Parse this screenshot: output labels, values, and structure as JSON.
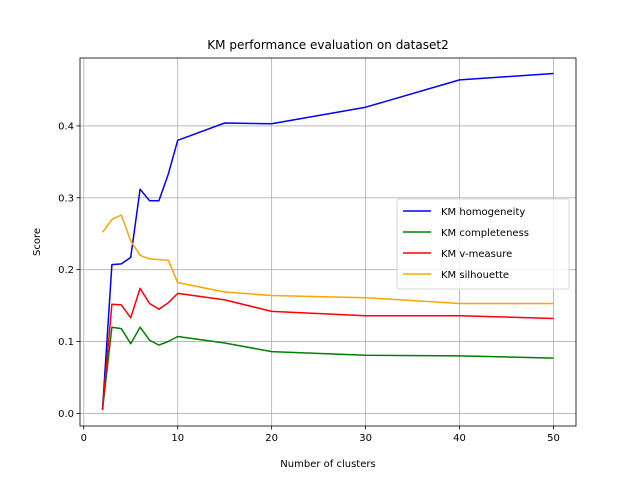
{
  "chart_data": {
    "type": "line",
    "title": "KM performance evaluation on dataset2",
    "xlabel": "Number of clusters",
    "ylabel": "Score",
    "xlim": [
      -0.4,
      52.4
    ],
    "ylim": [
      -0.0175,
      0.4945
    ],
    "xticks": [
      0,
      10,
      20,
      30,
      40,
      50
    ],
    "yticks": [
      0.0,
      0.1,
      0.2,
      0.3,
      0.4
    ],
    "xtick_labels": [
      "0",
      "10",
      "20",
      "30",
      "40",
      "50"
    ],
    "ytick_labels": [
      "0.0",
      "0.1",
      "0.2",
      "0.3",
      "0.4"
    ],
    "grid": true,
    "legend_position": "center-right",
    "x": [
      2,
      3,
      4,
      5,
      6,
      7,
      8,
      9,
      10,
      15,
      20,
      30,
      40,
      50
    ],
    "series": [
      {
        "name": "KM homogeneity",
        "color": "#0000ff",
        "values": [
          0.005,
          0.207,
          0.208,
          0.217,
          0.312,
          0.296,
          0.296,
          0.333,
          0.38,
          0.404,
          0.403,
          0.426,
          0.464,
          0.473
        ]
      },
      {
        "name": "KM completeness",
        "color": "#008000",
        "values": [
          0.005,
          0.12,
          0.118,
          0.097,
          0.12,
          0.102,
          0.095,
          0.1,
          0.107,
          0.098,
          0.086,
          0.081,
          0.08,
          0.077
        ]
      },
      {
        "name": "KM v-measure",
        "color": "#ff0000",
        "values": [
          0.005,
          0.152,
          0.151,
          0.133,
          0.174,
          0.153,
          0.145,
          0.154,
          0.167,
          0.158,
          0.142,
          0.136,
          0.136,
          0.132
        ]
      },
      {
        "name": "KM silhouette",
        "color": "#ffa500",
        "values": [
          0.252,
          0.27,
          0.276,
          0.24,
          0.22,
          0.215,
          0.214,
          0.213,
          0.182,
          0.169,
          0.164,
          0.161,
          0.153,
          0.153
        ]
      }
    ]
  }
}
